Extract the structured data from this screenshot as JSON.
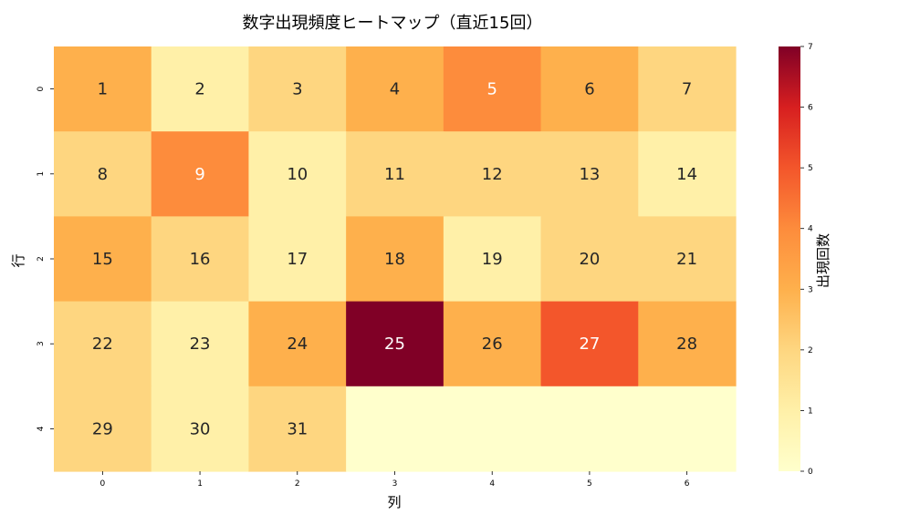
{
  "chart_data": {
    "type": "heatmap",
    "title": "数字出現頻度ヒートマップ（直近15回）",
    "xlabel": "列",
    "ylabel": "行",
    "x_ticks": [
      "0",
      "1",
      "2",
      "3",
      "4",
      "5",
      "6"
    ],
    "y_ticks": [
      "0",
      "1",
      "2",
      "3",
      "4"
    ],
    "colorbar_label": "出現回数",
    "colorbar_ticks": [
      "0",
      "1",
      "2",
      "3",
      "4",
      "5",
      "6",
      "7"
    ],
    "vmin": 0,
    "vmax": 7,
    "colormap": "YlOrRd",
    "grid": false,
    "annotations": [
      [
        "1",
        "2",
        "3",
        "4",
        "5",
        "6",
        "7"
      ],
      [
        "8",
        "9",
        "10",
        "11",
        "12",
        "13",
        "14"
      ],
      [
        "15",
        "16",
        "17",
        "18",
        "19",
        "20",
        "21"
      ],
      [
        "22",
        "23",
        "24",
        "25",
        "26",
        "27",
        "28"
      ],
      [
        "29",
        "30",
        "31",
        "",
        "",
        "",
        ""
      ]
    ],
    "values": [
      [
        3,
        1,
        2,
        3,
        4,
        3,
        2
      ],
      [
        2,
        4,
        1,
        2,
        2,
        2,
        1
      ],
      [
        3,
        2,
        1,
        3,
        1,
        2,
        2
      ],
      [
        2,
        1,
        3,
        7,
        3,
        5,
        3
      ],
      [
        2,
        1,
        2,
        0,
        0,
        0,
        0
      ]
    ]
  }
}
